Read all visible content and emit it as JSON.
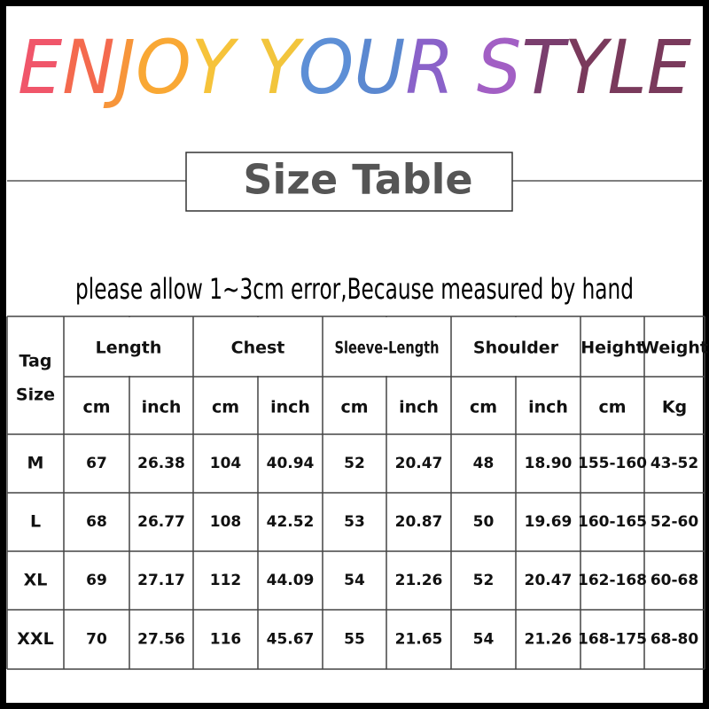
{
  "header": {
    "title": "ENJOY YOUR STYLE",
    "title_colors": [
      "#f0566a",
      "#f46a4e",
      "#f7953a",
      "#f9a834",
      "#f6c33a",
      null,
      "#f2c53c",
      "#5d8fd6",
      "#5b88d0",
      "#8a62c9",
      null,
      "#a25fc4",
      "#7a3e6e",
      "#7a3a5c",
      "#7a3a5c",
      "#7a3a5c"
    ],
    "subtitle": "Size Table",
    "note": "please allow 1~3cm error,Because measured by hand"
  },
  "table": {
    "corner": [
      "Tag",
      "Size"
    ],
    "groups": [
      {
        "label": "Length",
        "units": [
          "cm",
          "inch"
        ]
      },
      {
        "label": "Chest",
        "units": [
          "cm",
          "inch"
        ]
      },
      {
        "label": "Sleeve-Length",
        "units": [
          "cm",
          "inch"
        ]
      },
      {
        "label": "Shoulder",
        "units": [
          "cm",
          "inch"
        ]
      },
      {
        "label": "Height",
        "units": [
          "cm"
        ]
      },
      {
        "label": "Weight",
        "units": [
          "Kg"
        ]
      }
    ],
    "rows": [
      [
        "M",
        "67",
        "26.38",
        "104",
        "40.94",
        "52",
        "20.47",
        "48",
        "18.90",
        "155-160",
        "43-52"
      ],
      [
        "L",
        "68",
        "26.77",
        "108",
        "42.52",
        "53",
        "20.87",
        "50",
        "19.69",
        "160-165",
        "52-60"
      ],
      [
        "XL",
        "69",
        "27.17",
        "112",
        "44.09",
        "54",
        "21.26",
        "52",
        "20.47",
        "162-168",
        "60-68"
      ],
      [
        "XXL",
        "70",
        "27.56",
        "116",
        "45.67",
        "55",
        "21.65",
        "54",
        "21.26",
        "168-175",
        "68-80"
      ]
    ]
  }
}
